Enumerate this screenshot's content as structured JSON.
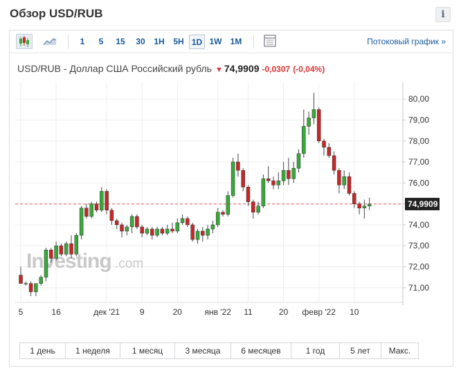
{
  "page": {
    "title": "Обзор USD/RUB",
    "info_icon": "info-icon"
  },
  "toolbar": {
    "chart_type_icons": [
      "candlestick-icon",
      "area-chart-icon"
    ],
    "timeframes": [
      "1",
      "5",
      "15",
      "30",
      "1H",
      "5H",
      "1D",
      "1W",
      "1M"
    ],
    "active_timeframe": "1D",
    "layout_icon": "layout-icon",
    "stream_link": "Потоковый график »"
  },
  "quote": {
    "name": "USD/RUB - Доллар США Российский рубль",
    "arrow": "▼",
    "price": "74,9909",
    "change": "-0,0307",
    "change_pct": "(-0,04%)"
  },
  "watermark": {
    "brand": "Investing",
    "suffix": ".com"
  },
  "colors": {
    "up": "#3aa83a",
    "down": "#c62828",
    "last_price_line": "#e35a5a",
    "last_price_badge": "#222222"
  },
  "chart_data": {
    "type": "candlestick",
    "y_ticks": [
      "80,00",
      "79,00",
      "78,00",
      "77,00",
      "76,00",
      "75,00",
      "74,00",
      "73,00",
      "72,00",
      "71,00"
    ],
    "y_tick_values": [
      80,
      79,
      78,
      77,
      76,
      75,
      74,
      73,
      72,
      71
    ],
    "ylim": [
      70.3,
      80.8
    ],
    "x_tick_labels": [
      {
        "label": "5",
        "index": 0
      },
      {
        "label": "16",
        "index": 7
      },
      {
        "label": "дек '21",
        "index": 17
      },
      {
        "label": "9",
        "index": 24
      },
      {
        "label": "20",
        "index": 31
      },
      {
        "label": "янв '22",
        "index": 39
      },
      {
        "label": "11",
        "index": 45
      },
      {
        "label": "20",
        "index": 52
      },
      {
        "label": "февр '22",
        "index": 59
      },
      {
        "label": "10",
        "index": 66
      }
    ],
    "last_price": 74.9909,
    "last_price_label": "74,9909",
    "candles": [
      {
        "o": 71.6,
        "h": 72.0,
        "l": 71.2,
        "c": 71.2
      },
      {
        "o": 71.2,
        "h": 71.3,
        "l": 71.1,
        "c": 71.2
      },
      {
        "o": 71.2,
        "h": 71.3,
        "l": 70.6,
        "c": 70.8
      },
      {
        "o": 70.8,
        "h": 71.2,
        "l": 70.6,
        "c": 71.2
      },
      {
        "o": 71.2,
        "h": 71.6,
        "l": 71.1,
        "c": 71.5
      },
      {
        "o": 71.5,
        "h": 72.9,
        "l": 71.3,
        "c": 72.8
      },
      {
        "o": 72.8,
        "h": 72.9,
        "l": 72.2,
        "c": 72.4
      },
      {
        "o": 72.4,
        "h": 73.2,
        "l": 72.3,
        "c": 73.0
      },
      {
        "o": 73.0,
        "h": 73.1,
        "l": 72.5,
        "c": 72.6
      },
      {
        "o": 72.6,
        "h": 73.2,
        "l": 72.5,
        "c": 73.1
      },
      {
        "o": 73.1,
        "h": 73.5,
        "l": 72.4,
        "c": 72.6
      },
      {
        "o": 72.6,
        "h": 73.6,
        "l": 72.5,
        "c": 73.5
      },
      {
        "o": 73.5,
        "h": 74.9,
        "l": 73.3,
        "c": 74.8
      },
      {
        "o": 74.8,
        "h": 75.0,
        "l": 74.3,
        "c": 74.4
      },
      {
        "o": 74.4,
        "h": 75.1,
        "l": 74.3,
        "c": 75.0
      },
      {
        "o": 75.0,
        "h": 75.1,
        "l": 74.6,
        "c": 74.7
      },
      {
        "o": 74.7,
        "h": 75.8,
        "l": 74.6,
        "c": 75.6
      },
      {
        "o": 75.6,
        "h": 75.7,
        "l": 74.5,
        "c": 74.7
      },
      {
        "o": 74.7,
        "h": 74.8,
        "l": 74.0,
        "c": 74.2
      },
      {
        "o": 74.2,
        "h": 74.3,
        "l": 73.8,
        "c": 74.0
      },
      {
        "o": 74.0,
        "h": 74.1,
        "l": 73.4,
        "c": 73.7
      },
      {
        "o": 73.7,
        "h": 74.0,
        "l": 73.5,
        "c": 73.9
      },
      {
        "o": 73.9,
        "h": 74.5,
        "l": 73.6,
        "c": 74.4
      },
      {
        "o": 74.4,
        "h": 74.5,
        "l": 73.8,
        "c": 73.9
      },
      {
        "o": 73.9,
        "h": 74.0,
        "l": 73.4,
        "c": 73.6
      },
      {
        "o": 73.6,
        "h": 73.9,
        "l": 73.5,
        "c": 73.8
      },
      {
        "o": 73.8,
        "h": 73.9,
        "l": 73.3,
        "c": 73.5
      },
      {
        "o": 73.5,
        "h": 73.9,
        "l": 73.4,
        "c": 73.8
      },
      {
        "o": 73.8,
        "h": 73.9,
        "l": 73.5,
        "c": 73.6
      },
      {
        "o": 73.6,
        "h": 74.0,
        "l": 73.5,
        "c": 73.8
      },
      {
        "o": 73.8,
        "h": 74.1,
        "l": 73.6,
        "c": 73.7
      },
      {
        "o": 73.7,
        "h": 74.3,
        "l": 73.6,
        "c": 74.1
      },
      {
        "o": 74.1,
        "h": 74.5,
        "l": 74.0,
        "c": 74.3
      },
      {
        "o": 74.3,
        "h": 74.4,
        "l": 73.9,
        "c": 74.0
      },
      {
        "o": 74.0,
        "h": 74.1,
        "l": 73.2,
        "c": 73.3
      },
      {
        "o": 73.3,
        "h": 73.8,
        "l": 73.1,
        "c": 73.7
      },
      {
        "o": 73.7,
        "h": 73.9,
        "l": 73.2,
        "c": 73.5
      },
      {
        "o": 73.5,
        "h": 74.0,
        "l": 73.3,
        "c": 73.8
      },
      {
        "o": 73.8,
        "h": 74.2,
        "l": 73.6,
        "c": 74.0
      },
      {
        "o": 74.0,
        "h": 74.8,
        "l": 73.9,
        "c": 74.6
      },
      {
        "o": 74.6,
        "h": 74.7,
        "l": 74.4,
        "c": 74.5
      },
      {
        "o": 74.5,
        "h": 75.6,
        "l": 74.4,
        "c": 75.4
      },
      {
        "o": 75.4,
        "h": 77.2,
        "l": 75.3,
        "c": 77.0
      },
      {
        "o": 77.0,
        "h": 77.4,
        "l": 76.3,
        "c": 76.6
      },
      {
        "o": 76.6,
        "h": 76.7,
        "l": 75.6,
        "c": 75.8
      },
      {
        "o": 75.8,
        "h": 75.9,
        "l": 74.9,
        "c": 75.1
      },
      {
        "o": 75.1,
        "h": 75.2,
        "l": 74.3,
        "c": 74.6
      },
      {
        "o": 74.6,
        "h": 75.1,
        "l": 74.5,
        "c": 74.9
      },
      {
        "o": 74.9,
        "h": 76.4,
        "l": 74.8,
        "c": 76.2
      },
      {
        "o": 76.2,
        "h": 76.8,
        "l": 76.0,
        "c": 76.1
      },
      {
        "o": 76.1,
        "h": 76.3,
        "l": 75.7,
        "c": 75.9
      },
      {
        "o": 75.9,
        "h": 76.5,
        "l": 75.7,
        "c": 76.1
      },
      {
        "o": 76.1,
        "h": 77.0,
        "l": 75.9,
        "c": 76.6
      },
      {
        "o": 76.6,
        "h": 77.2,
        "l": 75.9,
        "c": 76.2
      },
      {
        "o": 76.2,
        "h": 77.0,
        "l": 76.0,
        "c": 76.7
      },
      {
        "o": 76.7,
        "h": 77.6,
        "l": 76.5,
        "c": 77.4
      },
      {
        "o": 77.4,
        "h": 79.5,
        "l": 77.2,
        "c": 78.7
      },
      {
        "o": 78.7,
        "h": 79.4,
        "l": 78.3,
        "c": 79.1
      },
      {
        "o": 79.1,
        "h": 80.3,
        "l": 78.8,
        "c": 79.5
      },
      {
        "o": 79.5,
        "h": 79.6,
        "l": 77.9,
        "c": 78.0
      },
      {
        "o": 78.0,
        "h": 78.1,
        "l": 77.3,
        "c": 77.7
      },
      {
        "o": 77.7,
        "h": 77.9,
        "l": 77.2,
        "c": 77.3
      },
      {
        "o": 77.3,
        "h": 77.5,
        "l": 76.4,
        "c": 76.6
      },
      {
        "o": 76.6,
        "h": 76.7,
        "l": 75.5,
        "c": 75.9
      },
      {
        "o": 75.9,
        "h": 76.6,
        "l": 75.7,
        "c": 76.3
      },
      {
        "o": 76.3,
        "h": 76.5,
        "l": 75.4,
        "c": 75.5
      },
      {
        "o": 75.5,
        "h": 75.6,
        "l": 74.8,
        "c": 75.0
      },
      {
        "o": 75.0,
        "h": 75.1,
        "l": 74.5,
        "c": 74.8
      },
      {
        "o": 74.8,
        "h": 75.2,
        "l": 74.3,
        "c": 74.9
      },
      {
        "o": 74.9,
        "h": 75.3,
        "l": 74.7,
        "c": 74.99
      }
    ]
  },
  "ranges": [
    "1 день",
    "1 неделя",
    "1 месяц",
    "3 месяца",
    "6 месяцев",
    "1 год",
    "5 лет",
    "Макс."
  ]
}
